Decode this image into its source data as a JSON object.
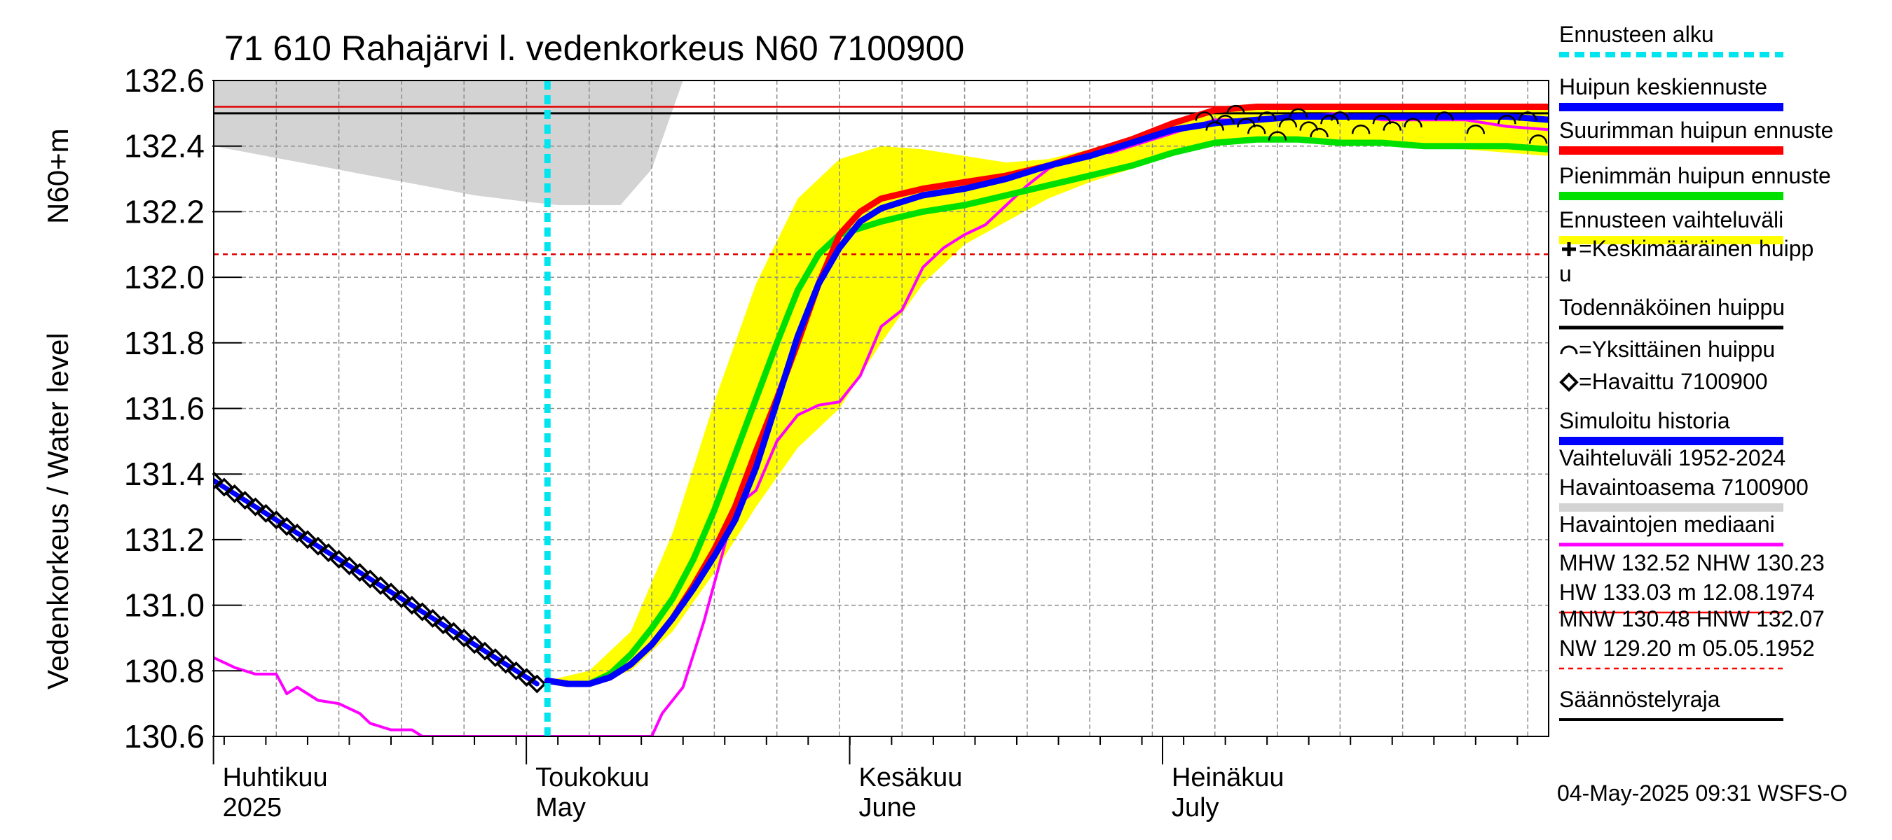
{
  "chart_data": {
    "type": "line",
    "title": "71 610 Rahajärvi l. vedenkorkeus N60 7100900",
    "ylabel_top": "N60+m",
    "ylabel_main": "Vedenkorkeus / Water level",
    "ylim": [
      130.6,
      132.6
    ],
    "y_ticks": [
      "132.6",
      "132.4",
      "132.2",
      "132.0",
      "131.8",
      "131.6",
      "131.4",
      "131.2",
      "131.0",
      "130.8",
      "130.6"
    ],
    "x_range_days": [
      0,
      128
    ],
    "x_origin": "2025-03-29",
    "month_labels": [
      {
        "day": 3,
        "fi": "Huhtikuu",
        "en": "2025"
      },
      {
        "day": 33,
        "fi": "Toukokuu",
        "en": "May"
      },
      {
        "day": 64,
        "fi": "Kesäkuu",
        "en": "June"
      },
      {
        "day": 94,
        "fi": "Heinäkuu",
        "en": "July"
      }
    ],
    "forecast_start_day": 32,
    "reference_lines": {
      "mhw": 132.52,
      "probable_peak": 132.5,
      "hnw": 132.07
    },
    "series": [
      {
        "name": "Vaihteluväli 1952-2024 Havaintoasema 7100900",
        "kind": "band",
        "color": "#d3d3d3",
        "x": [
          0,
          5,
          10,
          15,
          20,
          25,
          30,
          33,
          38,
          39,
          42,
          45,
          128
        ],
        "upper": [
          132.6,
          132.6,
          132.6,
          132.6,
          132.6,
          132.6,
          132.6,
          132.6,
          132.6,
          132.6,
          132.6,
          132.6,
          132.6
        ],
        "lower": [
          132.4,
          132.37,
          132.34,
          132.31,
          132.28,
          132.25,
          132.23,
          132.22,
          132.22,
          132.22,
          132.33,
          132.6,
          132.6
        ]
      },
      {
        "name": "Ennusteen vaihteluväli",
        "kind": "band",
        "color": "#ffff00",
        "x": [
          32,
          36,
          40,
          44,
          48,
          52,
          56,
          60,
          64,
          68,
          72,
          76,
          80,
          84,
          88,
          92,
          96,
          100,
          104,
          108,
          112,
          116,
          120,
          124,
          128
        ],
        "upper": [
          130.77,
          130.8,
          130.92,
          131.22,
          131.62,
          131.98,
          132.24,
          132.36,
          132.4,
          132.39,
          132.37,
          132.35,
          132.36,
          132.39,
          132.43,
          132.46,
          132.5,
          132.52,
          132.52,
          132.52,
          132.52,
          132.52,
          132.52,
          132.52,
          132.52
        ],
        "lower": [
          130.77,
          130.76,
          130.8,
          130.92,
          131.1,
          131.3,
          131.48,
          131.6,
          131.8,
          131.98,
          132.1,
          132.17,
          132.24,
          132.29,
          132.33,
          132.37,
          132.41,
          132.42,
          132.42,
          132.42,
          132.41,
          132.4,
          132.39,
          132.38,
          132.37
        ]
      },
      {
        "name": "Havaintojen mediaani",
        "kind": "line",
        "color": "#ff00ff",
        "x": [
          0,
          2,
          4,
          6,
          7,
          8,
          10,
          12,
          14,
          15,
          17,
          19,
          20,
          42,
          43,
          45,
          47,
          50,
          52,
          54,
          56,
          58,
          60,
          62,
          64,
          66,
          68,
          70,
          72,
          74,
          76,
          78,
          80,
          82,
          84,
          86,
          88,
          90,
          92,
          94,
          96,
          100,
          104,
          108,
          112,
          116,
          120,
          124,
          128
        ],
        "y": [
          130.84,
          130.81,
          130.79,
          130.79,
          130.73,
          130.75,
          130.71,
          130.7,
          130.67,
          130.64,
          130.62,
          130.62,
          130.6,
          130.6,
          130.67,
          130.75,
          130.95,
          131.3,
          131.35,
          131.5,
          131.58,
          131.61,
          131.62,
          131.7,
          131.85,
          131.9,
          132.03,
          132.09,
          132.13,
          132.16,
          132.22,
          132.28,
          132.33,
          132.36,
          132.38,
          132.38,
          132.4,
          132.42,
          132.44,
          132.46,
          132.48,
          132.48,
          132.49,
          132.5,
          132.48,
          132.48,
          132.48,
          132.46,
          132.45
        ]
      },
      {
        "name": "Pienimmän huipun ennuste",
        "kind": "line",
        "color": "#00e000",
        "x": [
          32,
          34,
          36,
          38,
          40,
          42,
          44,
          46,
          48,
          50,
          52,
          54,
          56,
          58,
          60,
          64,
          68,
          72,
          76,
          80,
          84,
          88,
          92,
          96,
          100,
          104,
          108,
          112,
          116,
          120,
          124,
          128
        ],
        "y": [
          130.77,
          130.76,
          130.76,
          130.79,
          130.85,
          130.93,
          131.02,
          131.14,
          131.29,
          131.46,
          131.63,
          131.8,
          131.96,
          132.07,
          132.13,
          132.17,
          132.2,
          132.22,
          132.25,
          132.28,
          132.31,
          132.34,
          132.38,
          132.41,
          132.42,
          132.42,
          132.41,
          132.41,
          132.4,
          132.4,
          132.4,
          132.39
        ]
      },
      {
        "name": "Suurimman huipun ennuste",
        "kind": "line",
        "color": "#ff0000",
        "x": [
          32,
          34,
          36,
          38,
          40,
          42,
          44,
          46,
          48,
          50,
          52,
          54,
          56,
          58,
          60,
          62,
          64,
          68,
          72,
          76,
          80,
          84,
          88,
          92,
          96,
          100,
          104,
          108,
          112,
          116,
          120,
          124,
          128
        ],
        "y": [
          130.77,
          130.76,
          130.76,
          130.78,
          130.82,
          130.88,
          130.96,
          131.06,
          131.17,
          131.3,
          131.47,
          131.63,
          131.8,
          131.98,
          132.13,
          132.2,
          132.24,
          132.27,
          132.29,
          132.31,
          132.34,
          132.38,
          132.42,
          132.47,
          132.51,
          132.52,
          132.52,
          132.52,
          132.52,
          132.52,
          132.52,
          132.52,
          132.52
        ]
      },
      {
        "name": "Huipun keskiennuste",
        "kind": "line",
        "color": "#0000ff",
        "x": [
          32,
          34,
          36,
          38,
          40,
          42,
          44,
          46,
          48,
          50,
          52,
          54,
          56,
          58,
          60,
          62,
          64,
          68,
          72,
          76,
          80,
          84,
          88,
          92,
          96,
          100,
          104,
          108,
          112,
          116,
          120,
          124,
          128
        ],
        "y": [
          130.77,
          130.76,
          130.76,
          130.78,
          130.82,
          130.88,
          130.96,
          131.05,
          131.15,
          131.26,
          131.42,
          131.62,
          131.82,
          131.98,
          132.09,
          132.17,
          132.21,
          132.25,
          132.27,
          132.3,
          132.34,
          132.37,
          132.41,
          132.45,
          132.47,
          132.48,
          132.49,
          132.49,
          132.49,
          132.49,
          132.49,
          132.49,
          132.48
        ]
      },
      {
        "name": "Simuloitu historia",
        "kind": "line",
        "color": "#0000ff",
        "x": [
          0,
          31
        ],
        "y": [
          131.38,
          130.76
        ]
      },
      {
        "name": "Havaittu 7100900",
        "kind": "markers",
        "marker": "diamond",
        "x": [
          0,
          1,
          2,
          3,
          4,
          5,
          6,
          7,
          8,
          9,
          10,
          11,
          12,
          13,
          14,
          15,
          16,
          17,
          18,
          19,
          20,
          21,
          22,
          23,
          24,
          25,
          26,
          27,
          28,
          29,
          30,
          31
        ],
        "y": [
          131.38,
          131.36,
          131.34,
          131.32,
          131.3,
          131.28,
          131.26,
          131.24,
          131.22,
          131.2,
          131.18,
          131.16,
          131.14,
          131.12,
          131.1,
          131.08,
          131.06,
          131.04,
          131.02,
          131.0,
          130.98,
          130.96,
          130.94,
          130.92,
          130.9,
          130.88,
          130.86,
          130.84,
          130.82,
          130.8,
          130.78,
          130.76
        ]
      },
      {
        "name": "Yksittäinen huippu",
        "kind": "markers",
        "marker": "arc",
        "x": [
          95,
          96,
          97,
          98,
          99,
          100,
          101,
          102,
          103,
          104,
          105,
          106,
          107,
          108,
          110,
          112,
          113,
          115,
          118,
          121,
          124,
          126,
          127
        ],
        "y": [
          132.49,
          132.46,
          132.48,
          132.51,
          132.47,
          132.45,
          132.49,
          132.43,
          132.47,
          132.5,
          132.46,
          132.44,
          132.48,
          132.49,
          132.45,
          132.48,
          132.46,
          132.47,
          132.49,
          132.45,
          132.48,
          132.49,
          132.42
        ]
      }
    ],
    "legend": [
      {
        "label": "Ennusteen alku",
        "style": "dashed",
        "color": "#00e5ee"
      },
      {
        "label": "Huipun keskiennuste",
        "style": "thick",
        "color": "#0000ff"
      },
      {
        "label": "Suurimman huipun ennuste",
        "style": "thick",
        "color": "#ff0000"
      },
      {
        "label": "Pienimmän huipun ennuste",
        "style": "thick",
        "color": "#00e000"
      },
      {
        "label": "Ennusteen vaihteluväli",
        "style": "thick",
        "color": "#ffff00"
      },
      {
        "label": "=Keskimääräinen huipp",
        "label2": "u",
        "style": "plus",
        "color": "#000000"
      },
      {
        "label": "Todennäköinen huippu",
        "style": "thin",
        "color": "#000000"
      },
      {
        "label": "=Yksittäinen huippu",
        "style": "arc",
        "color": "#000000"
      },
      {
        "label": "=Havaittu 7100900",
        "style": "diamond",
        "color": "#000000"
      },
      {
        "label": "Simuloitu historia",
        "style": "thick",
        "color": "#0000ff"
      },
      {
        "label": "Vaihteluväli 1952-2024",
        "label2": " Havaintoasema 7100900",
        "style": "thick",
        "color": "#d3d3d3"
      },
      {
        "label": "Havaintojen mediaani",
        "style": "mid",
        "color": "#ff00ff"
      },
      {
        "label": "MHW 132.52 NHW 130.23",
        "label2": "HW 133.03 m 12.08.1974",
        "style": "thinline",
        "color": "#ff0000"
      },
      {
        "label": "MNW 130.48 HNW 132.07",
        "label2": "NW 129.20 m 05.05.1952",
        "style": "dashthin",
        "color": "#ff0000"
      },
      {
        "label": "Säännöstelyraja",
        "style": "thinmid",
        "color": "#000000"
      }
    ],
    "footer": "04-May-2025 09:31 WSFS-O"
  }
}
